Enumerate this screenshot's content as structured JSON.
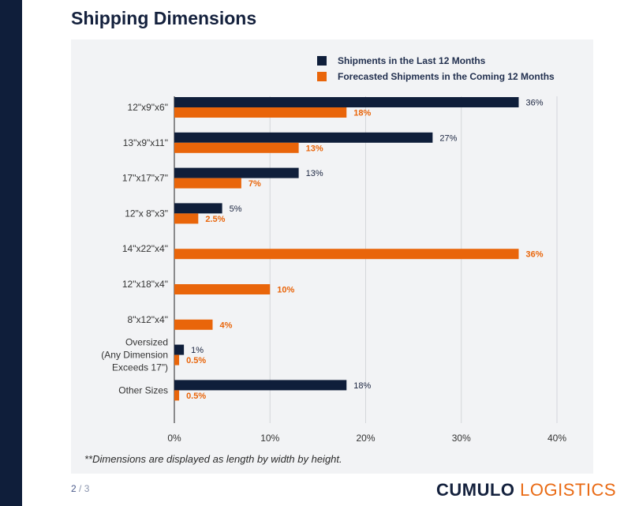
{
  "page": {
    "title": "Shipping Dimensions",
    "footnote": "**Dimensions are displayed as length by width by height.",
    "page_current": "2",
    "page_separator": " / ",
    "page_total": "3",
    "logo_part1": "CUMULO",
    "logo_part2": " LOGISTICS",
    "colors": {
      "side_band": "#0f1e3a",
      "panel_bg": "#f2f3f5",
      "navy": "#0f1e3a",
      "orange": "#e9650a",
      "grid": "#d4d6da"
    }
  },
  "chart_data": {
    "type": "bar",
    "orientation": "horizontal",
    "categories": [
      "12\"x9\"x6\"",
      "13\"x9\"x11\"",
      "17\"x17\"x7\"",
      "12\"x 8\"x3\"",
      "14\"x22\"x4\"",
      "12\"x18\"x4\"",
      "8\"x12\"x4\"",
      "Oversized\n(Any Dimension\nExceeds 17\")",
      "Other Sizes"
    ],
    "series": [
      {
        "name": "Shipments in the Last 12 Months",
        "color": "#0f1e3a",
        "values": [
          36,
          27,
          13,
          5,
          null,
          null,
          null,
          1,
          18
        ],
        "labels": [
          "36%",
          "27%",
          "13%",
          "5%",
          "",
          "",
          "",
          "1%",
          "18%"
        ]
      },
      {
        "name": "Forecasted Shipments in the Coming 12 Months",
        "color": "#e9650a",
        "values": [
          18,
          13,
          7,
          2.5,
          36,
          10,
          4,
          0.5,
          0.5
        ],
        "labels": [
          "18%",
          "13%",
          "7%",
          "2.5%",
          "36%",
          "10%",
          "4%",
          "0.5%",
          "0.5%"
        ]
      }
    ],
    "xlim": [
      0,
      40
    ],
    "xticks": [
      "0%",
      "10%",
      "20%",
      "30%",
      "40%"
    ],
    "grid": true,
    "legend_position": "top-right",
    "xlabel": "",
    "ylabel": ""
  }
}
